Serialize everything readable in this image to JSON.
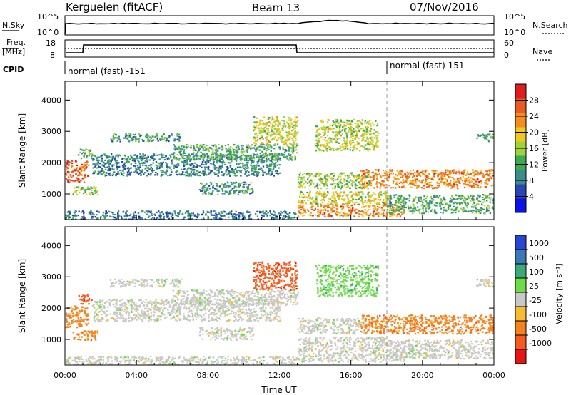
{
  "title": {
    "site": "Kerguelen (fitACF)",
    "beam": "Beam 13",
    "date": "07/Nov/2016"
  },
  "header": {
    "nsky_label": "N.Sky",
    "nsearch_label": "N.Search",
    "nsky_ticks": [
      "10^5",
      "10^0"
    ],
    "nsearch_ticks": [
      "10^5",
      "10^0"
    ],
    "freq_label_1": "Freq.",
    "freq_label_2": "[MHz]",
    "freq_ticks": [
      "18",
      "8"
    ],
    "nave_label": "Nave",
    "nave_ticks": [
      "60",
      "0"
    ],
    "cpid_label": "CPID",
    "cpid_segments": [
      "normal (fast) -151",
      "normal (fast) 151"
    ]
  },
  "chart_data": [
    {
      "type": "heatmap",
      "name": "power-panel",
      "ylabel": "Slant Range [km]",
      "xlabel": "",
      "x_ticks": [
        "00:00",
        "04:00",
        "08:00",
        "12:00",
        "16:00",
        "20:00",
        "00:00"
      ],
      "x_range_hours": [
        0,
        24
      ],
      "y_ticks": [
        1000,
        2000,
        3000,
        4000
      ],
      "ylim": [
        180,
        4600
      ],
      "colorbar": {
        "label": "Power [dB]",
        "range": [
          0,
          32
        ],
        "ticks": [
          4,
          8,
          12,
          16,
          20,
          24,
          28
        ],
        "colors": [
          "#0a14e6",
          "#2846b4",
          "#3c8c8c",
          "#3caa50",
          "#a0d23c",
          "#f0c81e",
          "#f58c1e",
          "#eb5a1e",
          "#dc1e1e"
        ]
      },
      "echo_regions": [
        {
          "t": [
            0.0,
            1.3
          ],
          "r": [
            1400,
            2100
          ],
          "level": 26
        },
        {
          "t": [
            0.7,
            1.5
          ],
          "r": [
            2150,
            2450
          ],
          "level": 12
        },
        {
          "t": [
            0.4,
            1.8
          ],
          "r": [
            1000,
            1300
          ],
          "level": 15
        },
        {
          "t": [
            0.0,
            13.0
          ],
          "r": [
            200,
            480
          ],
          "level": 8
        },
        {
          "t": [
            1.5,
            12.0
          ],
          "r": [
            1600,
            2300
          ],
          "level": 9
        },
        {
          "t": [
            2.5,
            6.5
          ],
          "r": [
            2700,
            2950
          ],
          "level": 11
        },
        {
          "t": [
            6.0,
            13.0
          ],
          "r": [
            2100,
            2600
          ],
          "level": 12
        },
        {
          "t": [
            7.5,
            10.5
          ],
          "r": [
            1000,
            1400
          ],
          "level": 11
        },
        {
          "t": [
            10.5,
            13.0
          ],
          "r": [
            2600,
            3500
          ],
          "level": 18
        },
        {
          "t": [
            13.0,
            17.0
          ],
          "r": [
            1200,
            1700
          ],
          "level": 15
        },
        {
          "t": [
            13.0,
            19.0
          ],
          "r": [
            300,
            700
          ],
          "level": 24
        },
        {
          "t": [
            14.0,
            17.5
          ],
          "r": [
            2400,
            3400
          ],
          "level": 17
        },
        {
          "t": [
            16.5,
            24.0
          ],
          "r": [
            1200,
            1800
          ],
          "level": 24
        },
        {
          "t": [
            13.0,
            18.0
          ],
          "r": [
            700,
            1100
          ],
          "level": 18
        },
        {
          "t": [
            18.0,
            24.0
          ],
          "r": [
            400,
            1000
          ],
          "level": 12
        },
        {
          "t": [
            23.0,
            24.0
          ],
          "r": [
            2700,
            2950
          ],
          "level": 12
        }
      ]
    },
    {
      "type": "heatmap",
      "name": "velocity-panel",
      "ylabel": "Slant Range [km]",
      "xlabel": "Time UT",
      "x_ticks": [
        "00:00",
        "04:00",
        "08:00",
        "12:00",
        "16:00",
        "20:00",
        "00:00"
      ],
      "x_range_hours": [
        0,
        24
      ],
      "y_ticks": [
        1000,
        2000,
        3000,
        4000
      ],
      "ylim": [
        180,
        4600
      ],
      "colorbar": {
        "label": "Velocity [m s⁻¹]",
        "tick_labels": [
          "1000",
          "500",
          "100",
          "25",
          "-25",
          "-100",
          "-500",
          "-1000"
        ],
        "colors": [
          "#2846d2",
          "#3c78b4",
          "#3caa78",
          "#6edc46",
          "#c8c8c8",
          "#f5be32",
          "#f5821e",
          "#f55a1e",
          "#e61414"
        ]
      },
      "echo_regions": [
        {
          "t": [
            0.0,
            1.3
          ],
          "r": [
            1400,
            2100
          ],
          "category": "-100"
        },
        {
          "t": [
            0.7,
            1.5
          ],
          "r": [
            2150,
            2450
          ],
          "category": "-500"
        },
        {
          "t": [
            0.4,
            1.8
          ],
          "r": [
            1000,
            1300
          ],
          "category": "-100"
        },
        {
          "t": [
            0.0,
            13.0
          ],
          "r": [
            200,
            480
          ],
          "category": "25"
        },
        {
          "t": [
            1.5,
            12.0
          ],
          "r": [
            1600,
            2300
          ],
          "category": "25"
        },
        {
          "t": [
            2.5,
            6.5
          ],
          "r": [
            2700,
            2950
          ],
          "category": "25"
        },
        {
          "t": [
            6.0,
            13.0
          ],
          "r": [
            2100,
            2600
          ],
          "category": "25"
        },
        {
          "t": [
            7.5,
            10.5
          ],
          "r": [
            1000,
            1400
          ],
          "category": "25"
        },
        {
          "t": [
            10.5,
            13.0
          ],
          "r": [
            2600,
            3500
          ],
          "category": "-500"
        },
        {
          "t": [
            13.0,
            17.0
          ],
          "r": [
            1200,
            1700
          ],
          "category": "25"
        },
        {
          "t": [
            13.0,
            19.0
          ],
          "r": [
            300,
            700
          ],
          "category": "25"
        },
        {
          "t": [
            14.0,
            17.5
          ],
          "r": [
            2400,
            3400
          ],
          "category": "100"
        },
        {
          "t": [
            16.5,
            24.0
          ],
          "r": [
            1200,
            1800
          ],
          "category": "-100"
        },
        {
          "t": [
            13.0,
            18.0
          ],
          "r": [
            700,
            1100
          ],
          "category": "25"
        },
        {
          "t": [
            18.0,
            24.0
          ],
          "r": [
            400,
            1000
          ],
          "category": "25"
        },
        {
          "t": [
            23.0,
            24.0
          ],
          "r": [
            2700,
            2950
          ],
          "category": "25"
        }
      ]
    }
  ]
}
